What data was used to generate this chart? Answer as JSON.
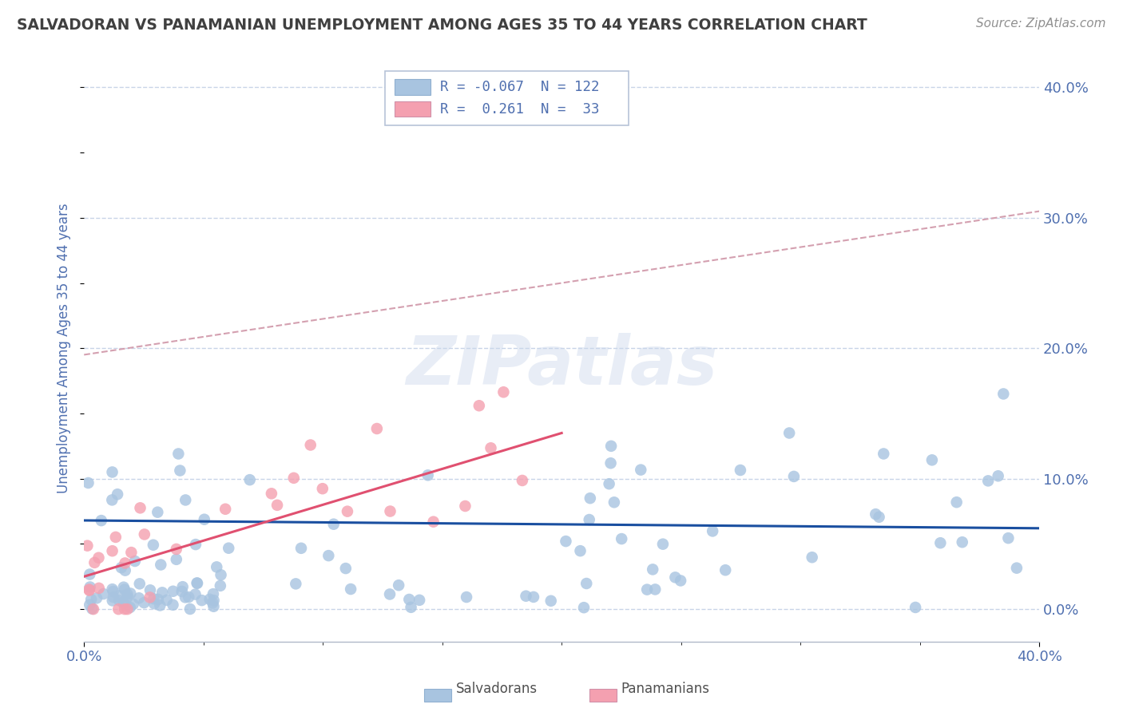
{
  "title": "SALVADORAN VS PANAMANIAN UNEMPLOYMENT AMONG AGES 35 TO 44 YEARS CORRELATION CHART",
  "source": "Source: ZipAtlas.com",
  "ylabel": "Unemployment Among Ages 35 to 44 years",
  "xlim": [
    0.0,
    0.4
  ],
  "ylim": [
    -0.025,
    0.425
  ],
  "salvadoran_color": "#a8c4e0",
  "panamanian_color": "#f4a0b0",
  "salvadoran_line_color": "#1a4fa0",
  "panamanian_line_color": "#e05070",
  "dashed_line_color": "#d4a0b0",
  "R_salv": -0.067,
  "N_salv": 122,
  "R_pana": 0.261,
  "N_pana": 33,
  "watermark": "ZIPatlas",
  "legend_label_salv": "Salvadorans",
  "legend_label_pana": "Panamanians",
  "background_color": "#ffffff",
  "grid_color": "#c8d4e8",
  "title_color": "#404040",
  "axis_label_color": "#5070b0",
  "right_ytick_color": "#5070b0",
  "source_color": "#909090"
}
